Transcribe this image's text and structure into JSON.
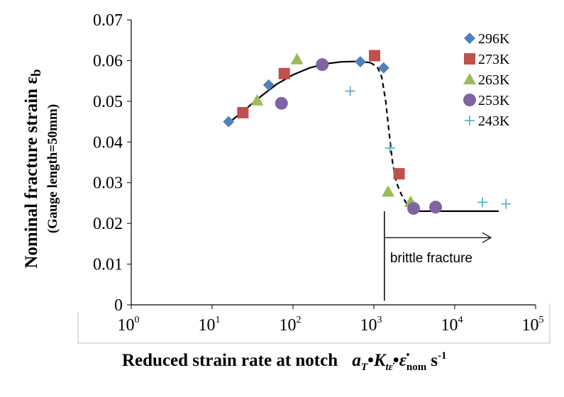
{
  "chart_data": {
    "type": "scatter",
    "x_scale": "log",
    "xlim": [
      1,
      100000
    ],
    "ylim": [
      0,
      0.07
    ],
    "y_ticks": [
      0,
      0.01,
      0.02,
      0.03,
      0.04,
      0.05,
      0.06,
      0.07
    ],
    "y_tick_labels": [
      "0",
      "0.01",
      "0.02",
      "0.03",
      "0.04",
      "0.05",
      "0.06",
      "0.07"
    ],
    "x_ticks": [
      1,
      10,
      100,
      1000,
      10000,
      100000
    ],
    "x_tick_base": "10",
    "x_tick_exponents": [
      "0",
      "1",
      "2",
      "3",
      "4",
      "5"
    ],
    "ylabel_main": "Nominal fracture strain ε",
    "ylabel_main_sub": "b",
    "ylabel_sub": "(Gauge length=50mm)",
    "xlabel_prefix": "Reduced strain rate at notch",
    "xlabel_formula": {
      "a": "a",
      "a_sub": "T",
      "dot1": "•",
      "k": "K",
      "k_sub": "tε̇",
      "dot2": "•",
      "eps": "ε̇",
      "eps_sub": "nom",
      "unit": "s",
      "unit_sup": "-1"
    },
    "grid": false,
    "legend_position": "top-right",
    "series": [
      {
        "name": "296K",
        "marker": "diamond",
        "color": "#4f81bd",
        "points": [
          [
            16,
            0.045
          ],
          [
            50,
            0.054
          ],
          [
            680,
            0.0597
          ],
          [
            1320,
            0.0582
          ]
        ]
      },
      {
        "name": "273K",
        "marker": "square",
        "color": "#c0504d",
        "points": [
          [
            24,
            0.0472
          ],
          [
            78,
            0.0568
          ],
          [
            1020,
            0.0612
          ],
          [
            2050,
            0.0322
          ]
        ]
      },
      {
        "name": "263K",
        "marker": "triangle",
        "color": "#9bbb59",
        "points": [
          [
            36,
            0.0502
          ],
          [
            112,
            0.0603
          ],
          [
            1500,
            0.0278
          ],
          [
            2850,
            0.0253
          ]
        ]
      },
      {
        "name": "253K",
        "marker": "circle",
        "color": "#8064a2",
        "points": [
          [
            72,
            0.0495
          ],
          [
            230,
            0.059
          ],
          [
            3100,
            0.0237
          ],
          [
            5800,
            0.024
          ]
        ]
      },
      {
        "name": "243K",
        "marker": "plus",
        "color": "#4bacc6",
        "points": [
          [
            510,
            0.0525
          ],
          [
            1580,
            0.0385
          ],
          [
            22000,
            0.0252
          ],
          [
            43000,
            0.0248
          ]
        ]
      }
    ],
    "fit_curve_solid": [
      [
        16,
        0.0447
      ],
      [
        25,
        0.0478
      ],
      [
        40,
        0.0512
      ],
      [
        63,
        0.0542
      ],
      [
        100,
        0.0565
      ],
      [
        160,
        0.0582
      ],
      [
        250,
        0.0592
      ],
      [
        400,
        0.0597
      ],
      [
        630,
        0.0598
      ],
      [
        900,
        0.0595
      ]
    ],
    "fit_curve_dashed": [
      [
        900,
        0.0595
      ],
      [
        1100,
        0.0585
      ],
      [
        1250,
        0.056
      ],
      [
        1400,
        0.05
      ],
      [
        1550,
        0.042
      ],
      [
        1700,
        0.035
      ],
      [
        1900,
        0.03
      ],
      [
        2200,
        0.027
      ],
      [
        2600,
        0.0245
      ],
      [
        3000,
        0.023
      ]
    ],
    "fit_curve_flat": [
      [
        3000,
        0.023
      ],
      [
        35000,
        0.023
      ]
    ],
    "annotation": {
      "text": "brittle fracture",
      "marker_x": 1350,
      "marker_y_range": [
        0.001,
        0.023
      ],
      "arrow_from_x": 1350,
      "arrow_to_x": 28000,
      "arrow_y": 0.0165
    }
  }
}
